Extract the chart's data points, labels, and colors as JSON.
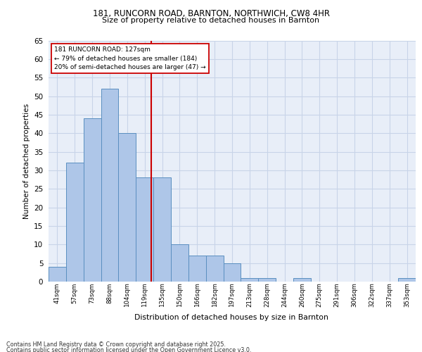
{
  "title1": "181, RUNCORN ROAD, BARNTON, NORTHWICH, CW8 4HR",
  "title2": "Size of property relative to detached houses in Barnton",
  "xlabel": "Distribution of detached houses by size in Barnton",
  "ylabel": "Number of detached properties",
  "categories": [
    "41sqm",
    "57sqm",
    "73sqm",
    "88sqm",
    "104sqm",
    "119sqm",
    "135sqm",
    "150sqm",
    "166sqm",
    "182sqm",
    "197sqm",
    "213sqm",
    "228sqm",
    "244sqm",
    "260sqm",
    "275sqm",
    "291sqm",
    "306sqm",
    "322sqm",
    "337sqm",
    "353sqm"
  ],
  "values": [
    4,
    32,
    44,
    52,
    40,
    28,
    28,
    10,
    7,
    7,
    5,
    1,
    1,
    0,
    1,
    0,
    0,
    0,
    0,
    0,
    1
  ],
  "bar_color": "#aec6e8",
  "bar_edge_color": "#5a8fc0",
  "annotation_box_text": "181 RUNCORN ROAD: 127sqm\n← 79% of detached houses are smaller (184)\n20% of semi-detached houses are larger (47) →",
  "vline_color": "#cc0000",
  "ylim_max": 65,
  "yticks": [
    0,
    5,
    10,
    15,
    20,
    25,
    30,
    35,
    40,
    45,
    50,
    55,
    60,
    65
  ],
  "grid_color": "#c8d4e8",
  "bg_color": "#e8eef8",
  "footer1": "Contains HM Land Registry data © Crown copyright and database right 2025.",
  "footer2": "Contains public sector information licensed under the Open Government Licence v3.0.",
  "property_sqm": 127,
  "bin_edges": [
    33,
    49,
    65,
    81,
    97,
    113,
    129,
    145,
    161,
    177,
    193,
    209,
    225,
    241,
    257,
    273,
    289,
    305,
    321,
    337,
    353,
    369
  ]
}
